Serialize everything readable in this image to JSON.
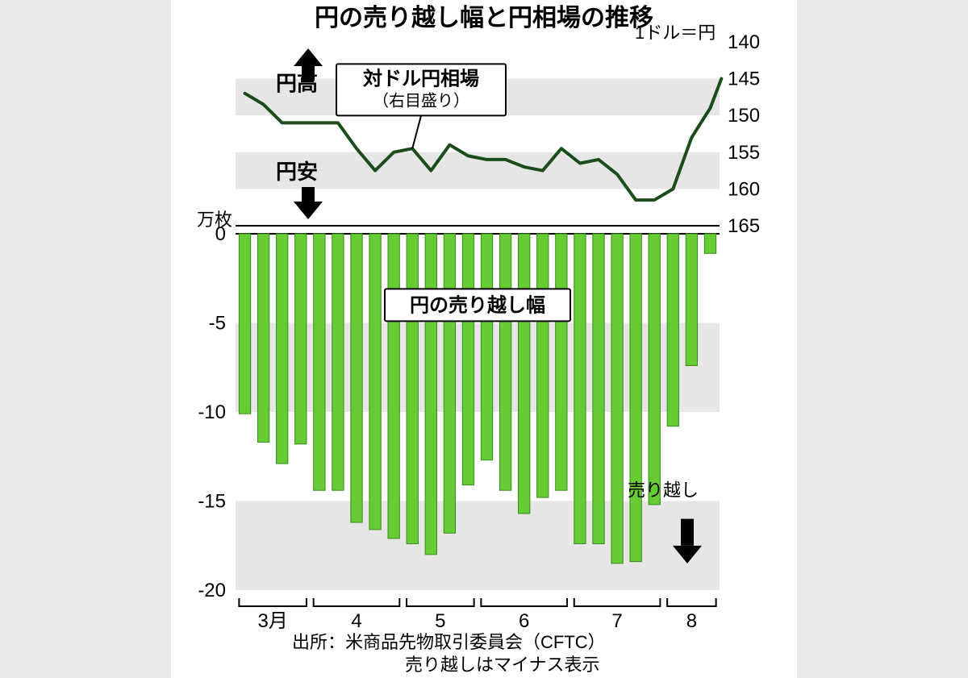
{
  "title": "円の売り越し幅と円相場の推移",
  "colors": {
    "page_bg": "#e8e8e8",
    "card_bg": "#ffffff",
    "band_gray": "#e6e6e6",
    "axis": "#000000",
    "line_series": "#1a4d1a",
    "bar_fill": "#66cc33",
    "bar_stroke": "#3a8a1f",
    "text": "#000000"
  },
  "line_chart": {
    "legend_box": "対ドル円相場",
    "legend_sub": "（右目盛り）",
    "right_axis_unit": "1ドル＝円",
    "right_axis": {
      "min": 140,
      "max": 165,
      "ticks": [
        140,
        145,
        150,
        155,
        160,
        165
      ],
      "inverted": true
    },
    "direction_up": "円高",
    "direction_down": "円安",
    "line_width": 4,
    "y_values": [
      147,
      148.5,
      151,
      151,
      151,
      151,
      154.5,
      157.5,
      155,
      154.5,
      157.5,
      154,
      155.5,
      156,
      156,
      157,
      157.5,
      154.5,
      156.5,
      156,
      158,
      161.5,
      161.5,
      160,
      153,
      149,
      145
    ]
  },
  "bar_chart": {
    "left_axis_unit": "万枚",
    "left_axis": {
      "min": -20,
      "max": 0,
      "ticks": [
        0,
        -5,
        -10,
        -15,
        -20
      ]
    },
    "series_label": "円の売り越し幅",
    "direction_label": "売り越し",
    "bar_width_ratio": 0.62,
    "values": [
      -10.1,
      -11.7,
      -12.9,
      -11.8,
      -14.4,
      -14.4,
      -16.2,
      -16.6,
      -17.1,
      -17.4,
      -18.0,
      -16.8,
      -14.1,
      -12.7,
      -14.4,
      -15.7,
      -14.8,
      -14.4,
      -17.4,
      -17.4,
      -18.5,
      -18.4,
      -15.2,
      -10.8,
      -7.4,
      -1.1
    ]
  },
  "x_axis": {
    "month_labels": [
      "3月",
      "4",
      "5",
      "6",
      "7",
      "8"
    ],
    "month_starts": [
      0,
      4,
      9,
      13,
      18,
      23
    ],
    "month_ends": [
      3,
      8,
      12,
      17,
      22,
      25
    ]
  },
  "source_lines": [
    "出所：米商品先物取引委員会（CFTC）",
    "売り越しはマイナス表示"
  ]
}
